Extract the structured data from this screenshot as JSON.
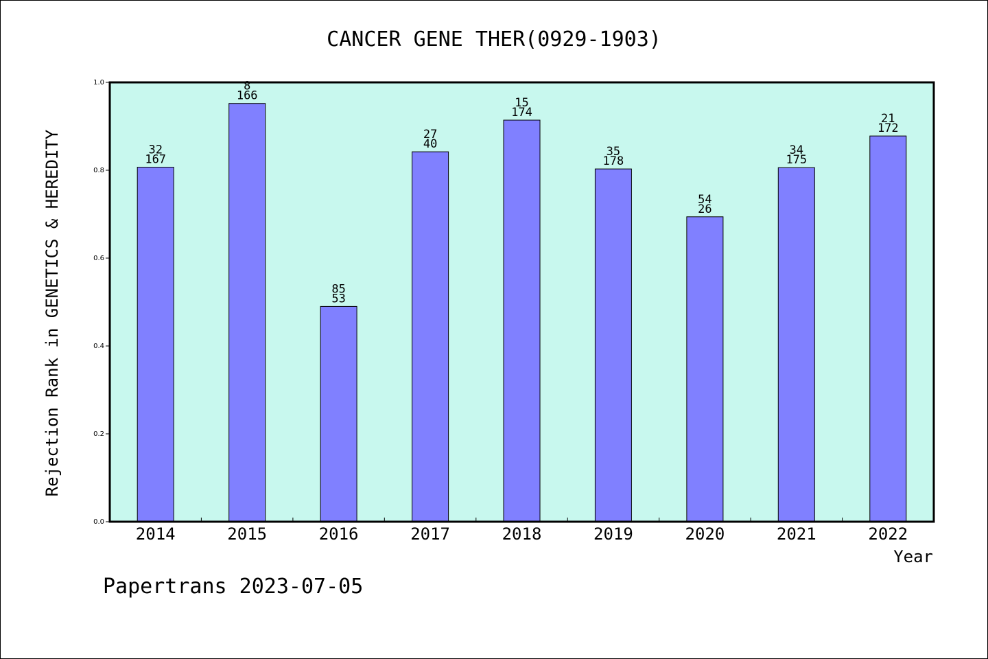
{
  "footer": "Papertrans 2023-07-05",
  "colors": {
    "plot_background": "#c8f8ee",
    "bar_fill": "#8080ff",
    "bar_stroke": "#000000"
  },
  "chart_data": {
    "type": "bar",
    "title": "CANCER GENE THER(0929-1903)",
    "xlabel": "Year",
    "ylabel": "Rejection Rank in GENETICS & HEREDITY",
    "ylim": [
      0,
      1.0
    ],
    "yticks": [
      "0.0",
      "0.2",
      "0.4",
      "0.6",
      "0.8",
      "1.0"
    ],
    "grid": false,
    "categories": [
      "2014",
      "2015",
      "2016",
      "2017",
      "2018",
      "2019",
      "2020",
      "2021",
      "2022"
    ],
    "values": [
      0.807,
      0.952,
      0.49,
      0.842,
      0.914,
      0.803,
      0.694,
      0.806,
      0.878
    ],
    "labels_top": [
      "32",
      "8",
      "85",
      "27",
      "15",
      "35",
      "54",
      "34",
      "21"
    ],
    "labels_bottom": [
      "167",
      "166",
      "53",
      "40",
      "174",
      "178",
      "26",
      "175",
      "172"
    ]
  }
}
